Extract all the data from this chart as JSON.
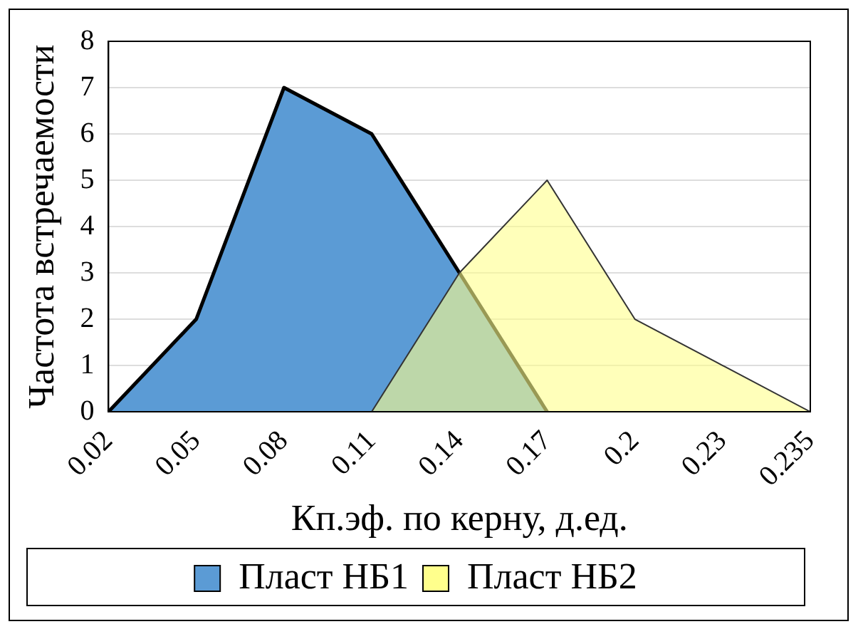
{
  "chart_data": {
    "type": "area",
    "xlabel": "Кп.эф. по керну, д.ед.",
    "ylabel": "Частота встречаемости",
    "categories": [
      "0.02",
      "0.05",
      "0.08",
      "0.11",
      "0.14",
      "0.17",
      "0.2",
      "0.23",
      "0.235"
    ],
    "series": [
      {
        "name": "Пласт НБ1",
        "color": "#5b9bd5",
        "values": [
          0,
          2,
          7,
          6,
          3,
          0,
          null,
          null,
          null
        ]
      },
      {
        "name": "Пласт НБ2",
        "color": "#ffff8c",
        "values": [
          null,
          null,
          null,
          0,
          3,
          5,
          2,
          1,
          0
        ]
      }
    ],
    "ylim": [
      0,
      8
    ],
    "yticks": [
      0,
      1,
      2,
      3,
      4,
      5,
      6,
      7,
      8
    ],
    "grid": "y",
    "legend": "bottom"
  }
}
